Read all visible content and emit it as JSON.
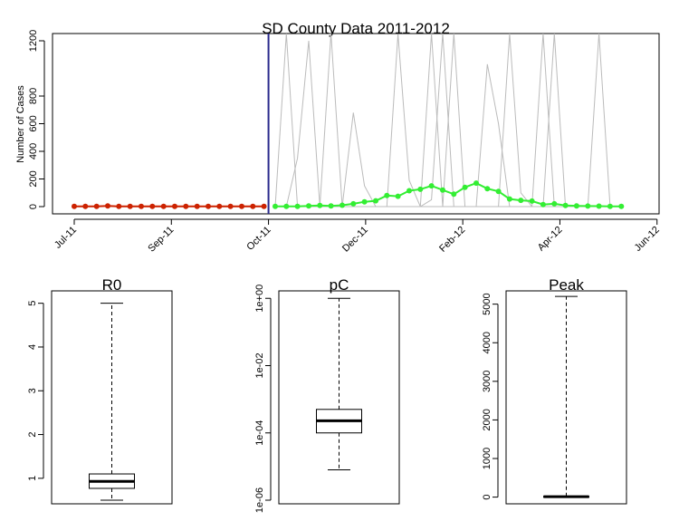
{
  "chart_data": [
    {
      "type": "line",
      "title": "SD County Data 2011-2012",
      "ylabel": "Number of Cases",
      "ylim": [
        0,
        1200
      ],
      "yticks": [
        0,
        200,
        400,
        600,
        800,
        1200
      ],
      "xlim": [
        0,
        50.6
      ],
      "xticks": [
        {
          "label": "Jul-11",
          "x": 0
        },
        {
          "label": "Sep-11",
          "x": 8.7
        },
        {
          "label": "Oct-11",
          "x": 17.4
        },
        {
          "label": "Dec-11",
          "x": 26.1
        },
        {
          "label": "Feb-12",
          "x": 34.8
        },
        {
          "label": "Apr-12",
          "x": 43.5
        },
        {
          "label": "Jun-12",
          "x": 52.2
        }
      ],
      "vline_x": 17.4,
      "colors": {
        "observed": "#cc2200",
        "fitted": "#33ee33",
        "vline": "#2a2a8c",
        "simulations": "#bbbbbb"
      },
      "series": [
        {
          "role": "observed",
          "x": [
            0,
            1,
            2,
            3,
            4,
            5,
            6,
            7,
            8,
            9,
            10,
            11,
            12,
            13,
            14,
            15,
            16,
            17
          ],
          "y": [
            2,
            2,
            1,
            5,
            1,
            2,
            2,
            1,
            1,
            1,
            1,
            1,
            1,
            1,
            2,
            1,
            1,
            1
          ]
        },
        {
          "role": "fitted",
          "x": [
            18,
            19,
            20,
            21,
            22,
            23,
            24,
            25,
            26,
            27,
            28,
            29,
            30,
            31,
            32,
            33,
            34,
            35,
            36,
            37,
            38,
            39,
            40,
            41,
            42,
            43,
            44,
            45,
            46,
            47,
            48,
            49
          ],
          "y": [
            1,
            1,
            1,
            5,
            8,
            5,
            10,
            20,
            35,
            42,
            80,
            75,
            115,
            125,
            150,
            120,
            90,
            140,
            170,
            130,
            110,
            55,
            45,
            40,
            15,
            20,
            8,
            5,
            4,
            3,
            2,
            2
          ]
        },
        {
          "role": "simulations",
          "x": [
            18,
            19,
            20,
            21,
            22,
            23,
            24,
            25,
            26,
            27,
            28,
            29,
            30,
            31,
            32,
            33,
            34,
            35,
            36,
            37,
            38,
            39,
            40,
            41,
            42,
            43,
            44,
            45,
            46,
            47,
            48,
            49
          ],
          "y": [
            0,
            0,
            350,
            1200,
            0,
            0,
            0,
            680,
            150,
            0,
            0,
            1250,
            190,
            0,
            0,
            0,
            1300,
            0,
            0,
            1030,
            600,
            0,
            0,
            0,
            0,
            0,
            0,
            0,
            0,
            0,
            0,
            0
          ]
        },
        {
          "role": "simulations",
          "x": [
            18,
            19,
            20,
            21,
            22,
            23,
            24,
            25,
            26,
            27,
            28,
            29,
            30,
            31,
            32,
            33,
            34,
            35,
            36,
            37,
            38,
            39,
            40,
            41,
            42,
            43,
            44,
            45,
            46,
            47,
            48,
            49
          ],
          "y": [
            0,
            1300,
            0,
            0,
            0,
            1300,
            0,
            0,
            0,
            0,
            0,
            0,
            0,
            0,
            50,
            1300,
            0,
            0,
            0,
            0,
            0,
            1300,
            100,
            0,
            0,
            1300,
            0,
            0,
            0,
            1300,
            0,
            0
          ]
        },
        {
          "role": "simulations",
          "x": [
            18,
            19,
            20,
            21,
            22,
            23,
            24,
            25,
            26,
            27,
            28,
            29,
            30,
            31,
            32,
            33,
            34,
            35,
            36,
            37,
            38,
            39,
            40,
            41,
            42,
            43,
            44,
            45,
            46,
            47,
            48,
            49
          ],
          "y": [
            0,
            0,
            0,
            0,
            0,
            0,
            0,
            0,
            0,
            0,
            0,
            0,
            0,
            0,
            1300,
            0,
            0,
            0,
            0,
            0,
            0,
            0,
            0,
            0,
            1300,
            0,
            0,
            0,
            0,
            0,
            0,
            0
          ]
        }
      ]
    },
    {
      "type": "box",
      "title": "R0",
      "scale": "linear",
      "ylim": [
        0.5,
        5.2
      ],
      "yticks": [
        1,
        2,
        3,
        4,
        5
      ],
      "whisker_low": 0.5,
      "q1": 0.77,
      "median": 0.93,
      "q3": 1.1,
      "whisker_high": 5.0
    },
    {
      "type": "box",
      "title": "pC",
      "scale": "log",
      "ylim": [
        1e-06,
        1.3
      ],
      "yticks": [
        {
          "label": "1e-06",
          "v": 1e-06
        },
        {
          "label": "1e-04",
          "v": 0.0001
        },
        {
          "label": "1e-02",
          "v": 0.01
        },
        {
          "label": "1e+00",
          "v": 1
        }
      ],
      "whisker_low": 8e-06,
      "q1": 0.0001,
      "median": 0.00023,
      "q3": 0.0005,
      "whisker_high": 1
    },
    {
      "type": "box",
      "title": "Peak",
      "scale": "linear",
      "ylim": [
        -80,
        5250
      ],
      "yticks": [
        0,
        1000,
        2000,
        3000,
        4000,
        5000
      ],
      "whisker_low": 0,
      "q1": 0,
      "median": 10,
      "q3": 20,
      "whisker_high": 5200
    }
  ]
}
